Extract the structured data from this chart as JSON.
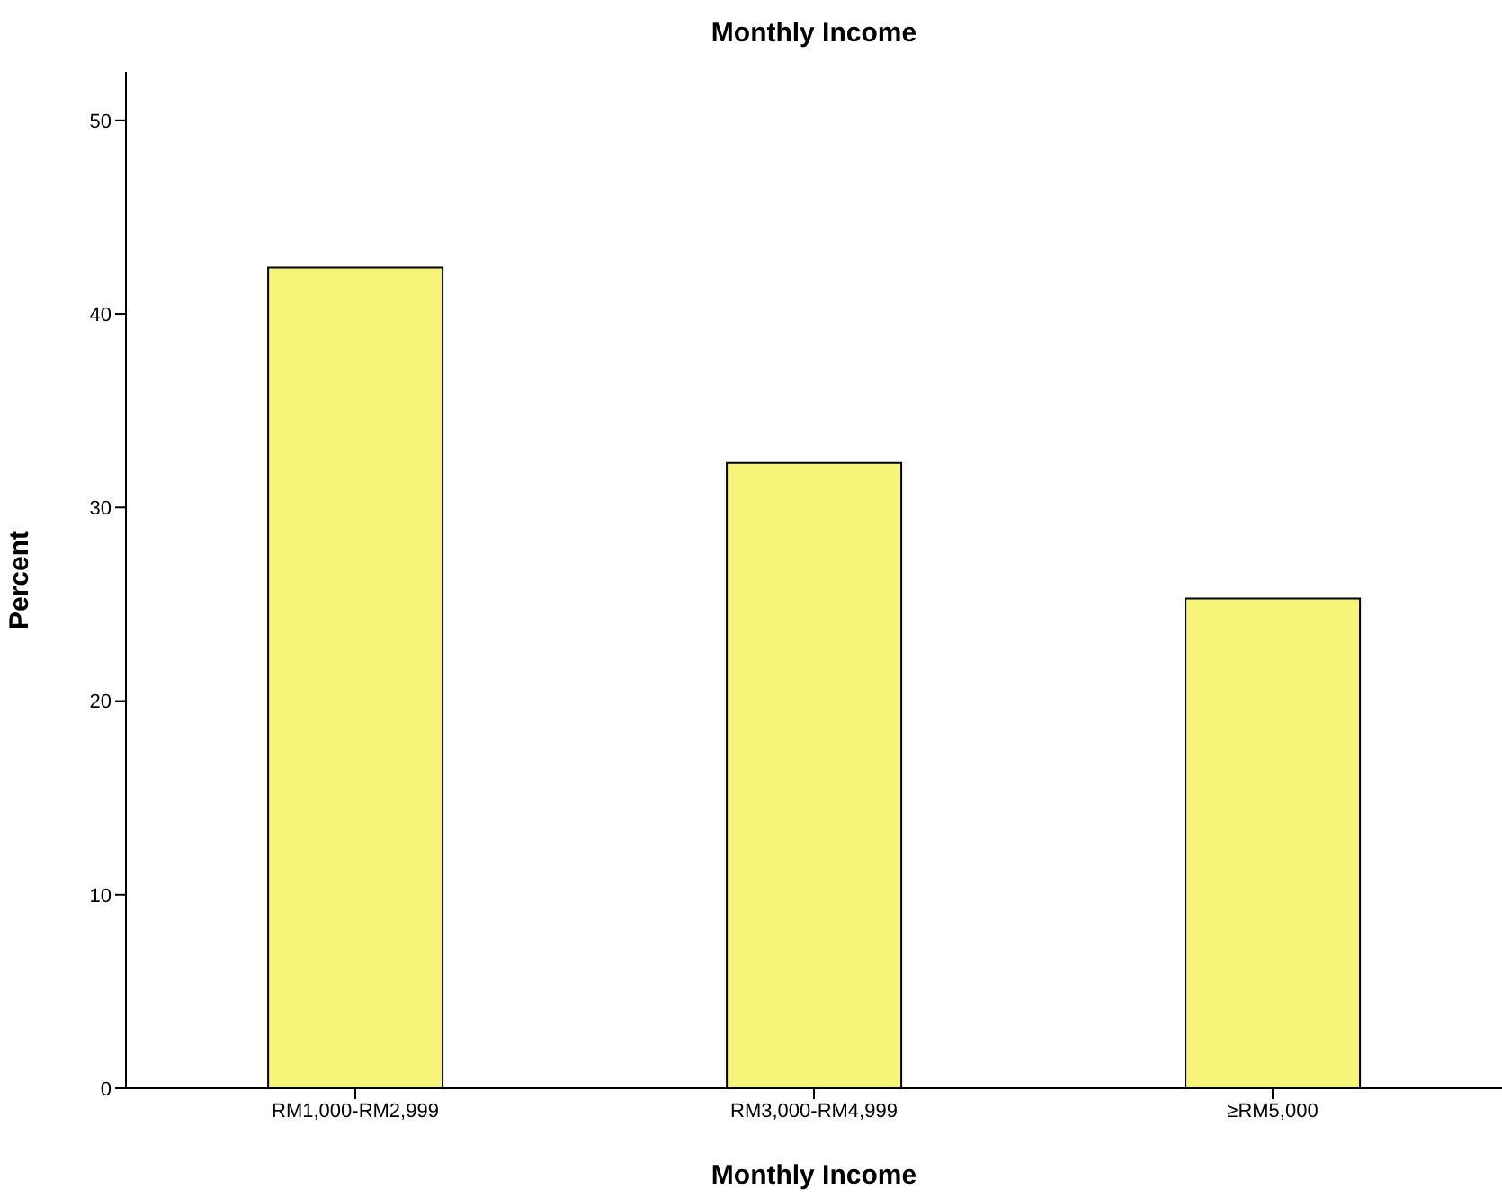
{
  "chart_data": {
    "type": "bar",
    "title": "Monthly Income",
    "xlabel": "Monthly Income",
    "ylabel": "Percent",
    "categories": [
      "RM1,000-RM2,999",
      "RM3,000-RM4,999",
      "≥RM5,000"
    ],
    "values": [
      42.4,
      32.3,
      25.3
    ],
    "color": "#f7f47a",
    "ylim": [
      0,
      52.5
    ],
    "yticks": [
      0,
      10,
      20,
      30,
      40,
      50
    ],
    "grid": false,
    "legend": false
  }
}
